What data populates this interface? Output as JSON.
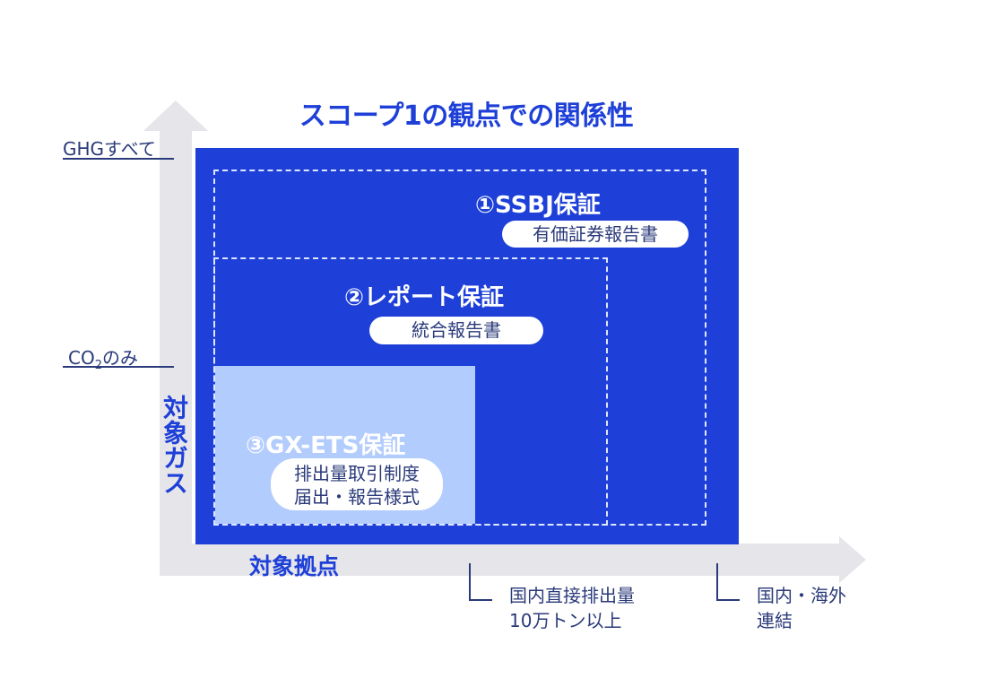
{
  "title": "スコープ1の観点での関係性",
  "y_axis": {
    "label": "対象ガス",
    "levels": {
      "top": "GHGすべて",
      "bottom_main": "CO",
      "bottom_sub": "2",
      "bottom_tail": "のみ"
    }
  },
  "x_axis": {
    "label": "対象拠点",
    "levels": [
      {
        "line1": "国内直接排出量",
        "line2": "10万トン以上"
      },
      {
        "line1": "国内・海外",
        "line2": "連結"
      }
    ]
  },
  "boxes": {
    "ssbj": {
      "label": "①SSBJ保証",
      "report": "有価証券報告書"
    },
    "report": {
      "label": "②レポート保証",
      "report": "統合報告書"
    },
    "gxets": {
      "label": "③GX-ETS保証",
      "report_line1": "排出量取引制度",
      "report_line2": "届出・報告様式"
    }
  },
  "colors": {
    "accent": "#1e40d8",
    "light": "#b2ccfd",
    "axis": "#e6e6ea",
    "text": "#2a3a7a"
  }
}
